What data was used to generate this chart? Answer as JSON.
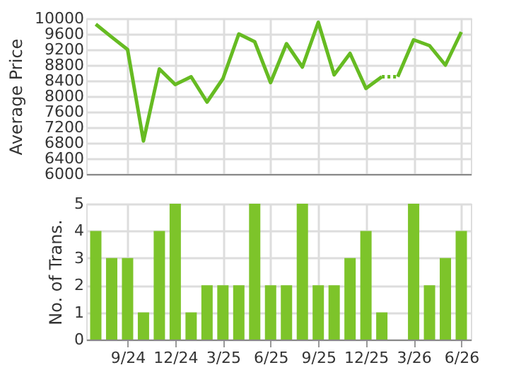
{
  "chart_data": [
    {
      "type": "line",
      "ylabel": "Average Price",
      "categories": [
        null,
        null,
        null,
        null,
        null,
        null,
        null,
        null,
        null,
        null,
        null,
        null,
        null,
        null,
        null,
        null,
        null,
        null,
        null,
        null,
        null,
        null,
        null,
        null
      ],
      "series": [
        {
          "color": "#66bb22",
          "line_style": "solid",
          "values": [
            9850,
            9520,
            9200,
            6850,
            8700,
            8300,
            8500,
            7850,
            8450,
            9600,
            9400,
            8350,
            9350,
            8750,
            9900,
            8550,
            9100,
            8200,
            8500,
            null,
            null,
            null,
            null,
            null
          ]
        },
        {
          "color": "#66bb22",
          "line_style": "dotted",
          "values": [
            null,
            null,
            null,
            null,
            null,
            null,
            null,
            null,
            null,
            null,
            null,
            null,
            null,
            null,
            null,
            null,
            null,
            null,
            8500,
            8500,
            null,
            null,
            null,
            null
          ]
        },
        {
          "color": "#66bb22",
          "line_style": "solid",
          "values": [
            null,
            null,
            null,
            null,
            null,
            null,
            null,
            null,
            null,
            null,
            null,
            null,
            null,
            null,
            null,
            null,
            null,
            null,
            null,
            8500,
            9450,
            9300,
            8800,
            9650
          ]
        }
      ],
      "ylim": [
        6000,
        10000
      ],
      "yticks": [
        6000,
        6400,
        6800,
        7200,
        7600,
        8000,
        8400,
        8800,
        9200,
        9600,
        10000
      ],
      "grid": true,
      "tick_labels": "y"
    },
    {
      "type": "bar",
      "ylabel": "No. of Trans.",
      "categories": [
        null,
        null,
        "9/24",
        null,
        null,
        "12/24",
        null,
        null,
        "3/25",
        null,
        null,
        "6/25",
        null,
        null,
        "9/25",
        null,
        null,
        "12/25",
        null,
        null,
        "3/26",
        null,
        null,
        "6/26"
      ],
      "values": [
        4,
        3,
        3,
        1,
        4,
        5,
        1,
        2,
        2,
        2,
        5,
        2,
        2,
        5,
        2,
        2,
        3,
        4,
        1,
        0,
        5,
        2,
        3,
        4
      ],
      "color": "#7dc42a",
      "ylim": [
        0,
        5
      ],
      "yticks": [
        0,
        1,
        2,
        3,
        4,
        5
      ],
      "grid": true
    }
  ]
}
